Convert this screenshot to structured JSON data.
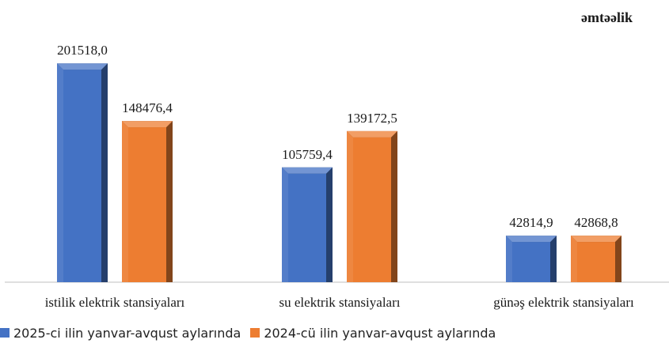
{
  "unit_label": "əmtəəlik",
  "colors": {
    "series1": "#4472C4",
    "series2": "#ED7D31"
  },
  "chart_data": {
    "type": "bar",
    "categories": [
      "istilik elektrik stansiyaları",
      "su elektrik stansiyaları",
      "günəş elektrik  stansiyaları"
    ],
    "series": [
      {
        "name": "2025-ci ilin yanvar-avqust aylarında",
        "values": [
          201518.0,
          105759.4,
          42814.9
        ],
        "labels": [
          "201518,0",
          "105759,4",
          "42814,9"
        ]
      },
      {
        "name": "2024-cü ilin yanvar-avqust aylarında",
        "values": [
          148476.4,
          139172.5,
          42868.8
        ],
        "labels": [
          "148476,4",
          "139172,5",
          "42868,8"
        ]
      }
    ],
    "ylim": [
      0,
      225000
    ],
    "grid": false,
    "legend_position": "bottom-left"
  }
}
